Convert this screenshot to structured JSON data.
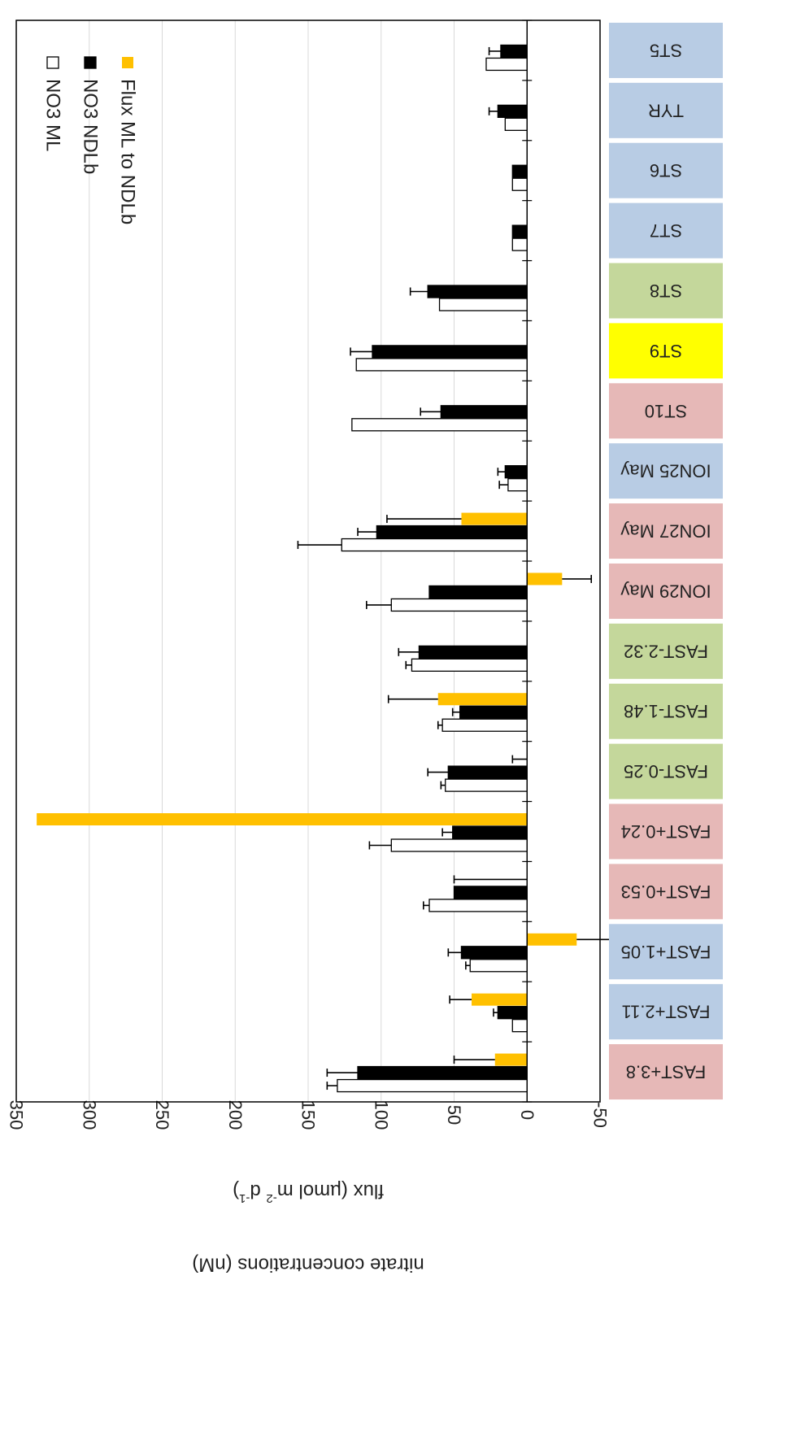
{
  "chart_data": {
    "type": "bar",
    "orientation": "rotated-180-horizontal",
    "ylabel_line1": "flux (µmol m",
    "ylabel_sup1": "-2",
    "ylabel_mid": " d",
    "ylabel_sup2": "-1",
    "ylabel_end": ")",
    "ylabel2": "nitrate concentrations (nM)",
    "ylim": [
      -50,
      350
    ],
    "ticks": [
      -50,
      0,
      50,
      100,
      150,
      200,
      250,
      300,
      350
    ],
    "grid": true,
    "legend_position": "top-left (upside down)",
    "categories": [
      "ST5",
      "TYR",
      "ST6",
      "ST7",
      "ST8",
      "ST9",
      "ST10",
      "ION25 May",
      "ION27 May",
      "ION29 May",
      "FAST-2.32",
      "FAST-1.48",
      "FAST-0.25",
      "FAST+0.24",
      "FAST+0.53",
      "FAST+1.05",
      "FAST+2.11",
      "FAST+3.8"
    ],
    "category_colors": [
      "#b8cce4",
      "#b8cce4",
      "#b8cce4",
      "#b8cce4",
      "#c4d79b",
      "#ffff00",
      "#e6b8b7",
      "#b8cce4",
      "#e6b8b7",
      "#e6b8b7",
      "#c4d79b",
      "#c4d79b",
      "#c4d79b",
      "#e6b8b7",
      "#e6b8b7",
      "#b8cce4",
      "#b8cce4",
      "#e6b8b7"
    ],
    "series": [
      {
        "name": "NO3 ML",
        "color": "#ffffff",
        "values": [
          28,
          15,
          10,
          10,
          60,
          117,
          120,
          13,
          127,
          93,
          79,
          58,
          56,
          93,
          67,
          39,
          10,
          130
        ],
        "errors": [
          0,
          0,
          0,
          0,
          0,
          0,
          0,
          6,
          30,
          17,
          4,
          3,
          3,
          15,
          4,
          3,
          0,
          7
        ]
      },
      {
        "name": "NO3 NDLb",
        "color": "#000000",
        "values": [
          18,
          20,
          10,
          10,
          68,
          106,
          59,
          15,
          103,
          67,
          74,
          46,
          54,
          51,
          50,
          45,
          20,
          116
        ],
        "errors": [
          8,
          6,
          0,
          0,
          12,
          15,
          14,
          5,
          13,
          0,
          14,
          5,
          14,
          7,
          0,
          9,
          3,
          21
        ]
      },
      {
        "name": "Flux ML to NDLb",
        "color": "#ffc000",
        "values": [
          0,
          0,
          0,
          0,
          0,
          0,
          0,
          0,
          45,
          -24,
          0,
          61,
          0,
          336,
          0,
          -34,
          38,
          22
        ],
        "errors": [
          0,
          0,
          0,
          0,
          0,
          0,
          0,
          0,
          51,
          20,
          0,
          34,
          10,
          0,
          50,
          23,
          15,
          28
        ]
      }
    ]
  }
}
